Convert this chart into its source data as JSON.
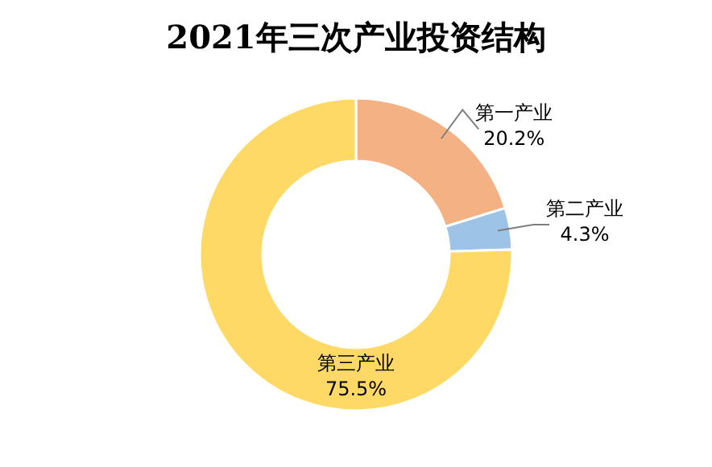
{
  "chart_data": {
    "type": "donut",
    "title": "2021年三次产业投资结构",
    "categories": [
      "第一产业",
      "第二产业",
      "第三产业"
    ],
    "values": [
      20.2,
      4.3,
      75.5
    ],
    "value_labels": [
      "20.2%",
      "4.3%",
      "75.5%"
    ],
    "colors": [
      "#f4b183",
      "#9dc3e6",
      "#ffd966"
    ]
  }
}
